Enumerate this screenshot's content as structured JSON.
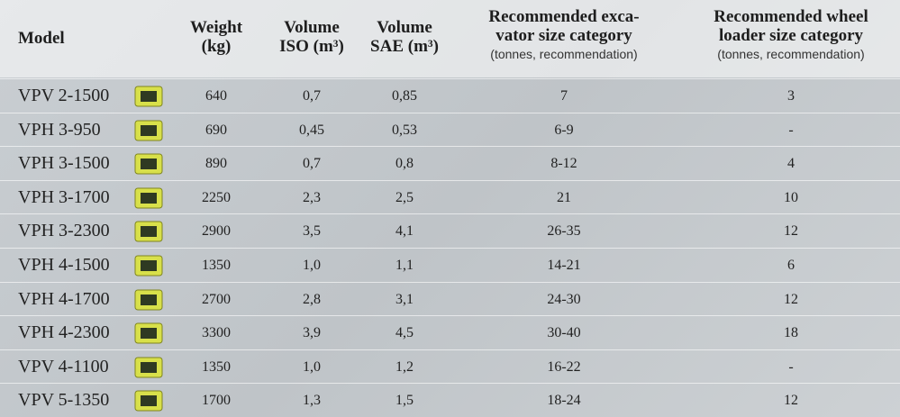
{
  "table": {
    "columns": [
      {
        "lines": [
          "Model"
        ]
      },
      {
        "lines": [
          "Weight",
          "(kg)"
        ]
      },
      {
        "lines": [
          "Volume",
          "ISO (m³)"
        ]
      },
      {
        "lines": [
          "Volume",
          "SAE (m³)"
        ]
      },
      {
        "lines": [
          "Recommended exca-",
          "vator size category"
        ],
        "note": "(tonnes, recommendation)"
      },
      {
        "lines": [
          "Recommended wheel",
          "loader size category"
        ],
        "note": "(tonnes, recommendation)"
      }
    ],
    "rows": [
      [
        "VPV 2-1500",
        "640",
        "0,7",
        "0,85",
        "7",
        "3"
      ],
      [
        "VPH 3-950",
        "690",
        "0,45",
        "0,53",
        "6-9",
        "-"
      ],
      [
        "VPH 3-1500",
        "890",
        "0,7",
        "0,8",
        "8-12",
        "4"
      ],
      [
        "VPH 3-1700",
        "2250",
        "2,3",
        "2,5",
        "21",
        "10"
      ],
      [
        "VPH 3-2300",
        "2900",
        "3,5",
        "4,1",
        "26-35",
        "12"
      ],
      [
        "VPH 4-1500",
        "1350",
        "1,0",
        "1,1",
        "14-21",
        "6"
      ],
      [
        "VPH 4-1700",
        "2700",
        "2,8",
        "3,1",
        "24-30",
        "12"
      ],
      [
        "VPH 4-2300",
        "3300",
        "3,9",
        "4,5",
        "30-40",
        "18"
      ],
      [
        "VPV 4-1100",
        "1350",
        "1,0",
        "1,2",
        "16-22",
        "-"
      ],
      [
        "VPV 5-1350",
        "1700",
        "1,3",
        "1,5",
        "18-24",
        "12"
      ]
    ]
  }
}
